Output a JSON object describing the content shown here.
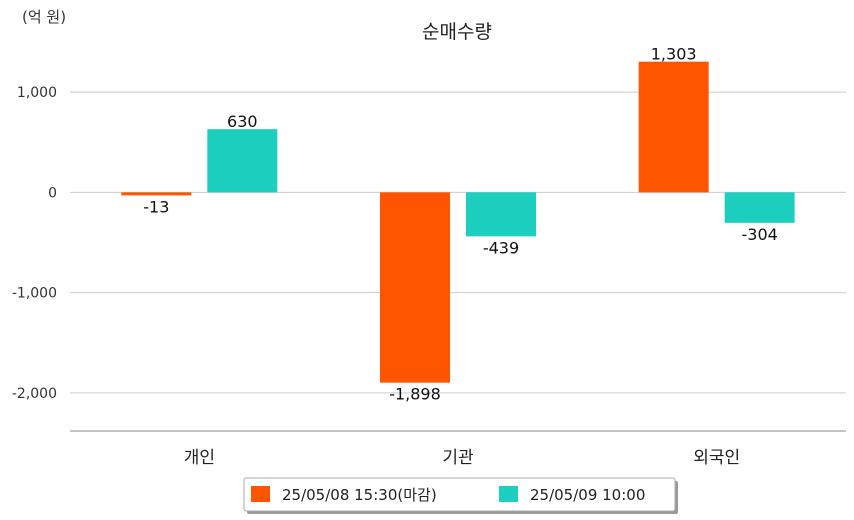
{
  "chart_data": {
    "type": "bar",
    "title": "순매수량",
    "unit_label": "(억 원)",
    "categories": [
      "개인",
      "기관",
      "외국인"
    ],
    "series": [
      {
        "name": "25/05/08 15:30(마감)",
        "color": "#FF5500",
        "values": [
          -13,
          -1898,
          1303
        ],
        "labels": [
          "-13",
          "-1,898",
          "1,303"
        ]
      },
      {
        "name": "25/05/09 10:00",
        "color": "#1DCFBE",
        "values": [
          630,
          -439,
          -304
        ],
        "labels": [
          "630",
          "-439",
          "-304"
        ]
      }
    ],
    "yticks": [
      1000,
      0,
      -1000,
      -2000
    ],
    "ytick_labels": [
      "1,000",
      "0",
      "-1,000",
      "-2,000"
    ],
    "ylim": [
      -2380,
      1320
    ],
    "grid": true,
    "legend_position": "bottom"
  }
}
